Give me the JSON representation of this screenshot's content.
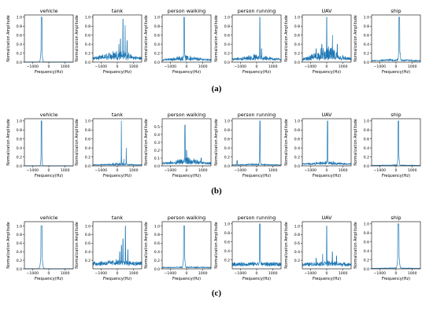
{
  "chart_data": {
    "type": "line",
    "title": "",
    "x_axis_label": "Frequency(Hz)",
    "y_axis_label": "Normalization Amplitude",
    "x_ticks": [
      -1000,
      0,
      1000
    ],
    "xlim": [
      -1500,
      1500
    ],
    "line_color": "#1f77b4",
    "grid": false,
    "class_titles": [
      "vehicle",
      "tank",
      "person walking",
      "person running",
      "UAV",
      "ship"
    ],
    "rows": [
      {
        "label": "(a)",
        "panels": [
          {
            "title": "vehicle",
            "ylim": [
              0,
              1.05
            ],
            "y_ticks": [
              0.0,
              0.2,
              0.4,
              0.6,
              0.8,
              1.0
            ],
            "peaks": [
              [
                -450,
                1.0
              ]
            ],
            "noise": 0.0,
            "spread": 60,
            "base": 0.0
          },
          {
            "title": "tank",
            "ylim": [
              0,
              1.05
            ],
            "y_ticks": [
              0.0,
              0.2,
              0.4,
              0.6,
              0.8,
              1.0
            ],
            "peaks": [
              [
                350,
                0.96
              ],
              [
                480,
                0.82
              ],
              [
                200,
                0.52
              ],
              [
                600,
                0.48
              ],
              [
                100,
                0.4
              ]
            ],
            "noise": 0.12,
            "spread": 20,
            "base": 0.08
          },
          {
            "title": "person walking",
            "ylim": [
              0,
              1.05
            ],
            "y_ticks": [
              0.0,
              0.2,
              0.4,
              0.6,
              0.8,
              1.0
            ],
            "peaks": [
              [
                -150,
                1.0
              ]
            ],
            "noise": 0.06,
            "spread": 50,
            "base": 0.05
          },
          {
            "title": "person running",
            "ylim": [
              0,
              1.05
            ],
            "y_ticks": [
              0.0,
              0.2,
              0.4,
              0.6,
              0.8,
              1.0
            ],
            "peaks": [
              [
                200,
                1.0
              ],
              [
                300,
                0.3
              ]
            ],
            "noise": 0.07,
            "spread": 25,
            "base": 0.06
          },
          {
            "title": "UAV",
            "ylim": [
              0,
              1.05
            ],
            "y_ticks": [
              0.0,
              0.2,
              0.4,
              0.6,
              0.8,
              1.0
            ],
            "peaks": [
              [
                0,
                1.0
              ],
              [
                350,
                0.6
              ],
              [
                -300,
                0.4
              ],
              [
                650,
                0.4
              ],
              [
                -650,
                0.3
              ]
            ],
            "noise": 0.18,
            "spread": 15,
            "base": 0.06
          },
          {
            "title": "ship",
            "ylim": [
              0,
              1.05
            ],
            "y_ticks": [
              0.0,
              0.2,
              0.4,
              0.6,
              0.8,
              1.0
            ],
            "peaks": [
              [
                200,
                1.0
              ],
              [
                250,
                0.2
              ]
            ],
            "noise": 0.03,
            "spread": 60,
            "base": 0.03
          }
        ]
      },
      {
        "label": "(b)",
        "panels": [
          {
            "title": "vehicle",
            "ylim": [
              0,
              1.05
            ],
            "y_ticks": [
              0.0,
              0.2,
              0.4,
              0.6,
              0.8,
              1.0
            ],
            "peaks": [
              [
                -450,
                1.0
              ]
            ],
            "noise": 0.0,
            "spread": 40,
            "base": 0.0
          },
          {
            "title": "tank",
            "ylim": [
              0,
              1.05
            ],
            "y_ticks": [
              0.0,
              0.2,
              0.4,
              0.6,
              0.8,
              1.0
            ],
            "peaks": [
              [
                250,
                1.0
              ],
              [
                550,
                0.4
              ],
              [
                400,
                0.15
              ]
            ],
            "noise": 0.03,
            "spread": 15,
            "base": 0.02
          },
          {
            "title": "person walking",
            "ylim": [
              0,
              0.6
            ],
            "y_ticks": [
              0.0,
              0.1,
              0.2,
              0.3,
              0.4,
              0.5
            ],
            "peaks": [
              [
                -100,
                0.52
              ],
              [
                0,
                0.2
              ],
              [
                900,
                0.1
              ]
            ],
            "noise": 0.05,
            "spread": 30,
            "base": 0.03
          },
          {
            "title": "person running",
            "ylim": [
              0,
              1.05
            ],
            "y_ticks": [
              0.0,
              0.2,
              0.4,
              0.6,
              0.8,
              1.0
            ],
            "peaks": [
              [
                200,
                1.0
              ],
              [
                -1200,
                0.12
              ]
            ],
            "noise": 0.02,
            "spread": 35,
            "base": 0.02
          },
          {
            "title": "UAV",
            "ylim": [
              0,
              1.05
            ],
            "y_ticks": [
              0.0,
              0.2,
              0.4,
              0.6,
              0.8,
              1.0
            ],
            "peaks": [
              [
                50,
                1.0
              ]
            ],
            "noise": 0.04,
            "spread": 35,
            "base": 0.04
          },
          {
            "title": "ship",
            "ylim": [
              0,
              1.05
            ],
            "y_ticks": [
              0.0,
              0.2,
              0.4,
              0.6,
              0.8,
              1.0
            ],
            "peaks": [
              [
                150,
                1.0
              ]
            ],
            "noise": 0.01,
            "spread": 50,
            "base": 0.01
          }
        ]
      },
      {
        "label": "(c)",
        "panels": [
          {
            "title": "vehicle",
            "ylim": [
              0,
              1.1
            ],
            "y_ticks": [
              0.0,
              0.2,
              0.4,
              0.6,
              0.8,
              1.0
            ],
            "peaks": [
              [
                -450,
                1.0
              ]
            ],
            "noise": 0.0,
            "spread": 80,
            "base": 0.0
          },
          {
            "title": "tank",
            "ylim": [
              0,
              1.1
            ],
            "y_ticks": [
              0.2,
              0.4,
              0.6,
              0.8,
              1.0
            ],
            "peaks": [
              [
                500,
                1.0
              ],
              [
                350,
                0.7
              ],
              [
                250,
                0.55
              ],
              [
                150,
                0.4
              ],
              [
                650,
                0.45
              ]
            ],
            "noise": 0.04,
            "spread": 25,
            "base": 0.12
          },
          {
            "title": "person walking",
            "ylim": [
              0,
              1.1
            ],
            "y_ticks": [
              0.0,
              0.2,
              0.4,
              0.6,
              0.8,
              1.0
            ],
            "peaks": [
              [
                -150,
                1.0
              ]
            ],
            "noise": 0.01,
            "spread": 70,
            "base": 0.03
          },
          {
            "title": "person running",
            "ylim": [
              0,
              1.05
            ],
            "y_ticks": [
              0.2,
              0.4,
              0.6,
              0.8,
              1.0
            ],
            "peaks": [
              [
                200,
                1.0
              ]
            ],
            "noise": 0.015,
            "spread": 45,
            "base": 0.1
          },
          {
            "title": "UAV",
            "ylim": [
              0,
              1.1
            ],
            "y_ticks": [
              0.2,
              0.4,
              0.6,
              0.8,
              1.0
            ],
            "peaks": [
              [
                0,
                1.0
              ],
              [
                350,
                0.4
              ],
              [
                -250,
                0.35
              ],
              [
                600,
                0.3
              ],
              [
                -650,
                0.25
              ]
            ],
            "noise": 0.04,
            "spread": 20,
            "base": 0.1
          },
          {
            "title": "ship",
            "ylim": [
              0,
              1.05
            ],
            "y_ticks": [
              0.0,
              0.2,
              0.4,
              0.6,
              0.8,
              1.0
            ],
            "peaks": [
              [
                150,
                1.0
              ]
            ],
            "noise": 0.01,
            "spread": 80,
            "base": 0.01
          }
        ]
      }
    ]
  }
}
